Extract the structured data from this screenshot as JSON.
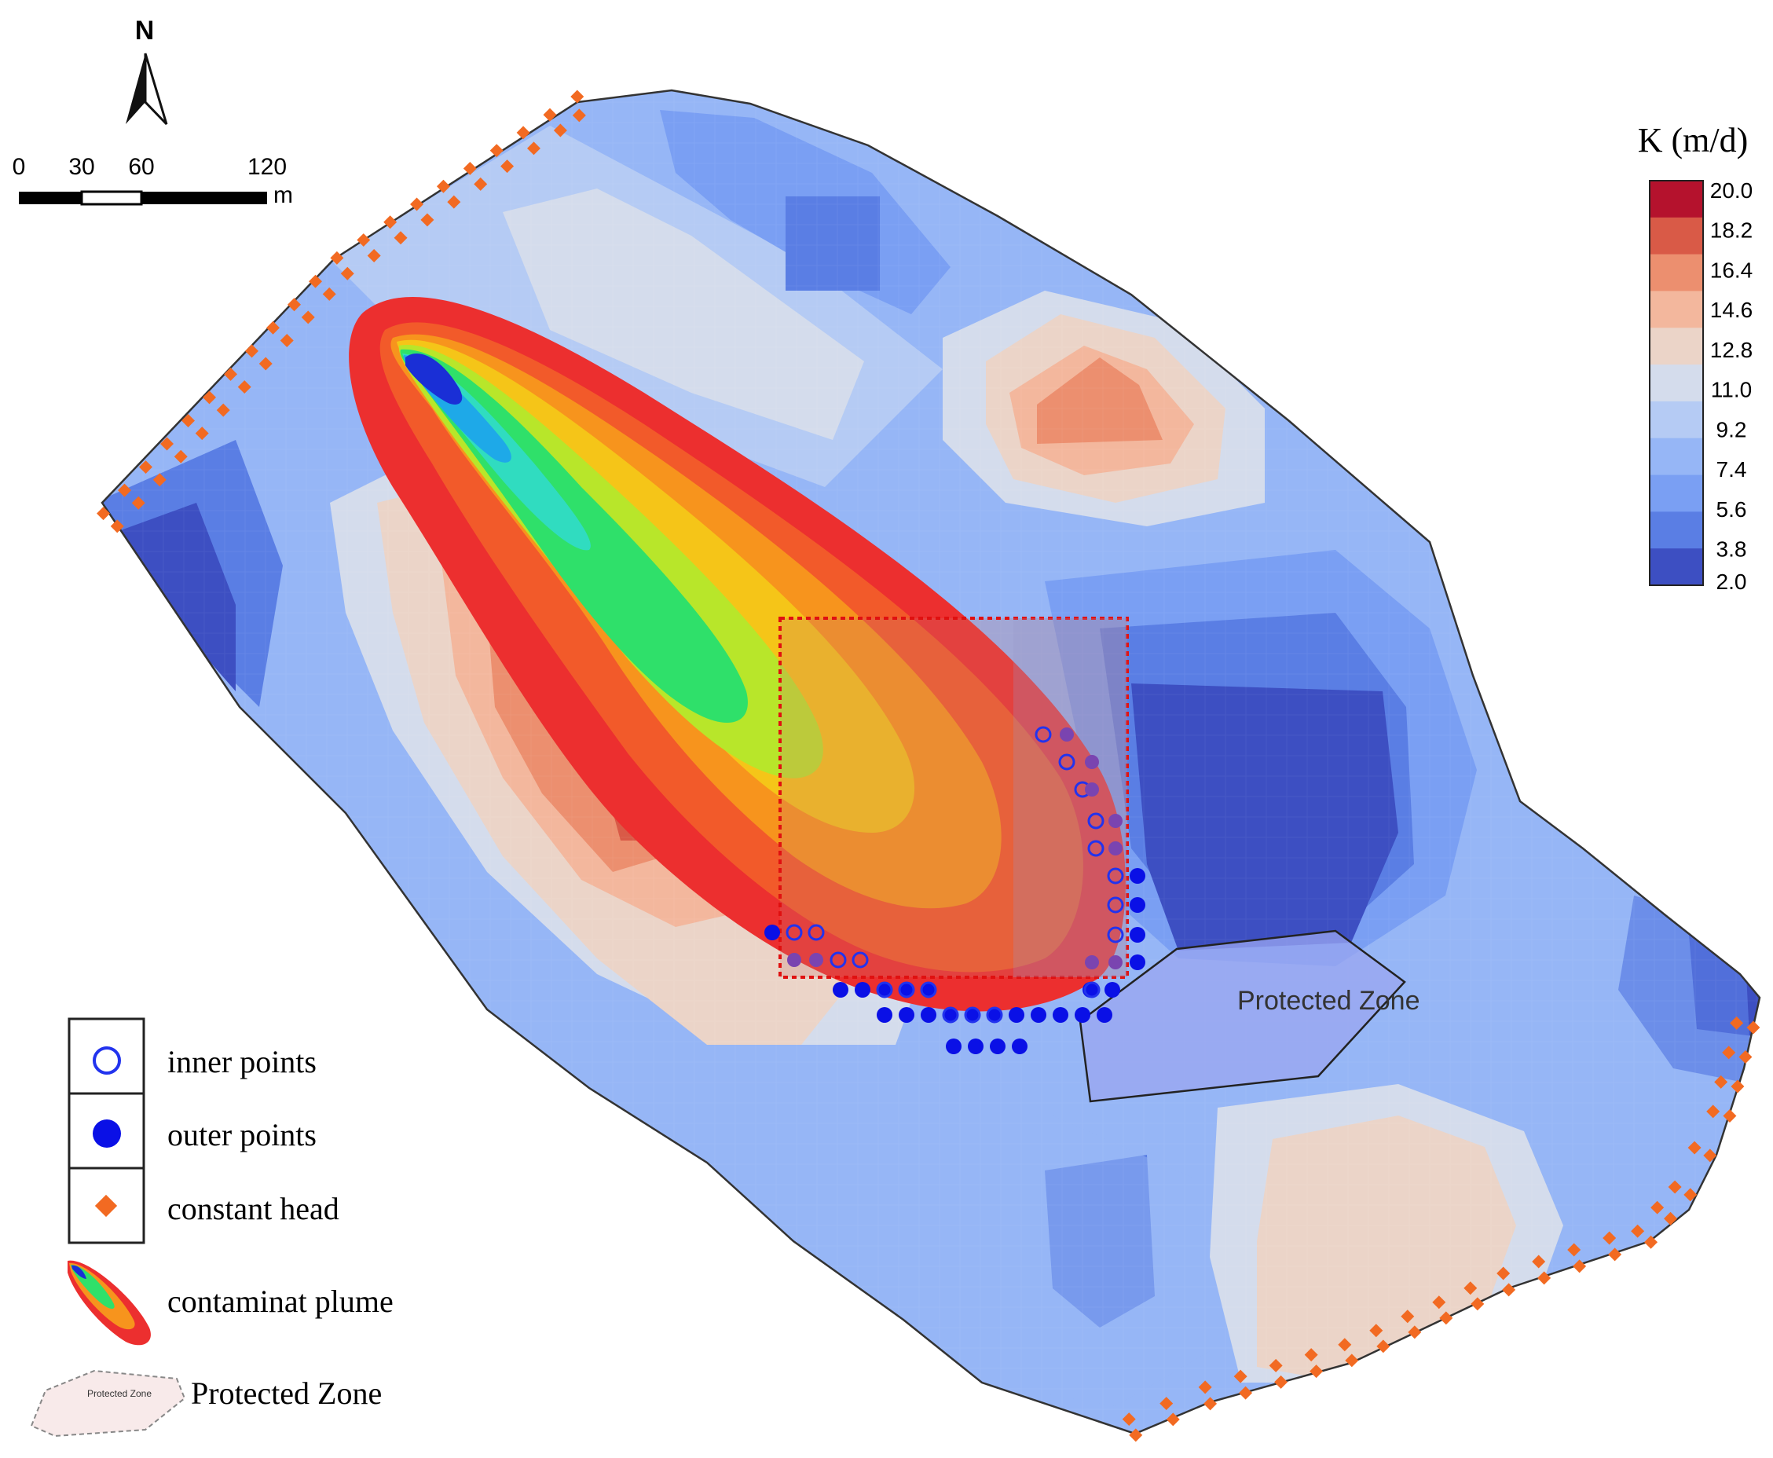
{
  "north_arrow": {
    "label": "N"
  },
  "scale_bar": {
    "ticks": [
      "0",
      "30",
      "60",
      "120"
    ],
    "unit": "m"
  },
  "colorbar": {
    "title": "K (m/d)",
    "labels": [
      "20.0",
      "18.2",
      "16.4",
      "14.6",
      "12.8",
      "11.0",
      "9.2",
      "7.4",
      "5.6",
      "3.8",
      "2.0"
    ],
    "colors": [
      "#b5122d",
      "#d95a47",
      "#ec8f6f",
      "#f3b79d",
      "#ebd4c8",
      "#d4dcec",
      "#b5cbf4",
      "#96b6f6",
      "#7a9ff3",
      "#5a7ee4",
      "#3d4fc2"
    ]
  },
  "legend": {
    "items": [
      {
        "key": "inner",
        "label": "inner points"
      },
      {
        "key": "outer",
        "label": "outer points"
      },
      {
        "key": "head",
        "label": "constant head"
      },
      {
        "key": "plume",
        "label": "contaminat plume"
      },
      {
        "key": "zone",
        "label": "Protected Zone",
        "swatch_text": "Protected Zone"
      }
    ]
  },
  "map": {
    "protected_zone_label": "Protected Zone",
    "colors": {
      "plume_outer": "#ec2f2f",
      "plume_mid": "#f7941d",
      "plume_core": "#2fe06a",
      "plume_center": "#1a2fd6",
      "constant_head": "#f26a22",
      "outer_point": "#0a10e6",
      "inner_point": "#2233ee",
      "monitor_box": "#e01010",
      "zone_fill": "#9aa6f0"
    }
  }
}
